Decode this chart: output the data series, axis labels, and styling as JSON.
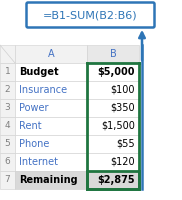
{
  "formula": "=B1-SUM(B2:B6)",
  "rows": [
    {
      "row": 1,
      "col_a": "Budget",
      "col_b": "$5,000",
      "bold": true
    },
    {
      "row": 2,
      "col_a": "Insurance",
      "col_b": "$100",
      "bold": false
    },
    {
      "row": 3,
      "col_a": "Power",
      "col_b": "$350",
      "bold": false
    },
    {
      "row": 4,
      "col_a": "Rent",
      "col_b": "$1,500",
      "bold": false
    },
    {
      "row": 5,
      "col_a": "Phone",
      "col_b": "$55",
      "bold": false
    },
    {
      "row": 6,
      "col_a": "Internet",
      "col_b": "$120",
      "bold": false
    },
    {
      "row": 7,
      "col_a": "Remaining",
      "col_b": "$2,875",
      "bold": true
    }
  ],
  "formula_box_color": "#2E75B6",
  "formula_box_fill": "#FFFFFF",
  "formula_text_color": "#2E75B6",
  "header_col_a": "A",
  "header_col_b": "B",
  "header_text_color": "#4472C4",
  "row_number_color": "#808080",
  "grid_color": "#D0D0D0",
  "green_border_color": "#1F7540",
  "row7_bg": "#D9D9D9",
  "bold_text_color": "#000000",
  "normal_a_color": "#4472C4",
  "normal_b_color": "#000000",
  "arrow_color": "#2E75B6",
  "col_header_bg": "#F2F2F2",
  "row_header_bg": "#F2F2F2",
  "white": "#FFFFFF"
}
